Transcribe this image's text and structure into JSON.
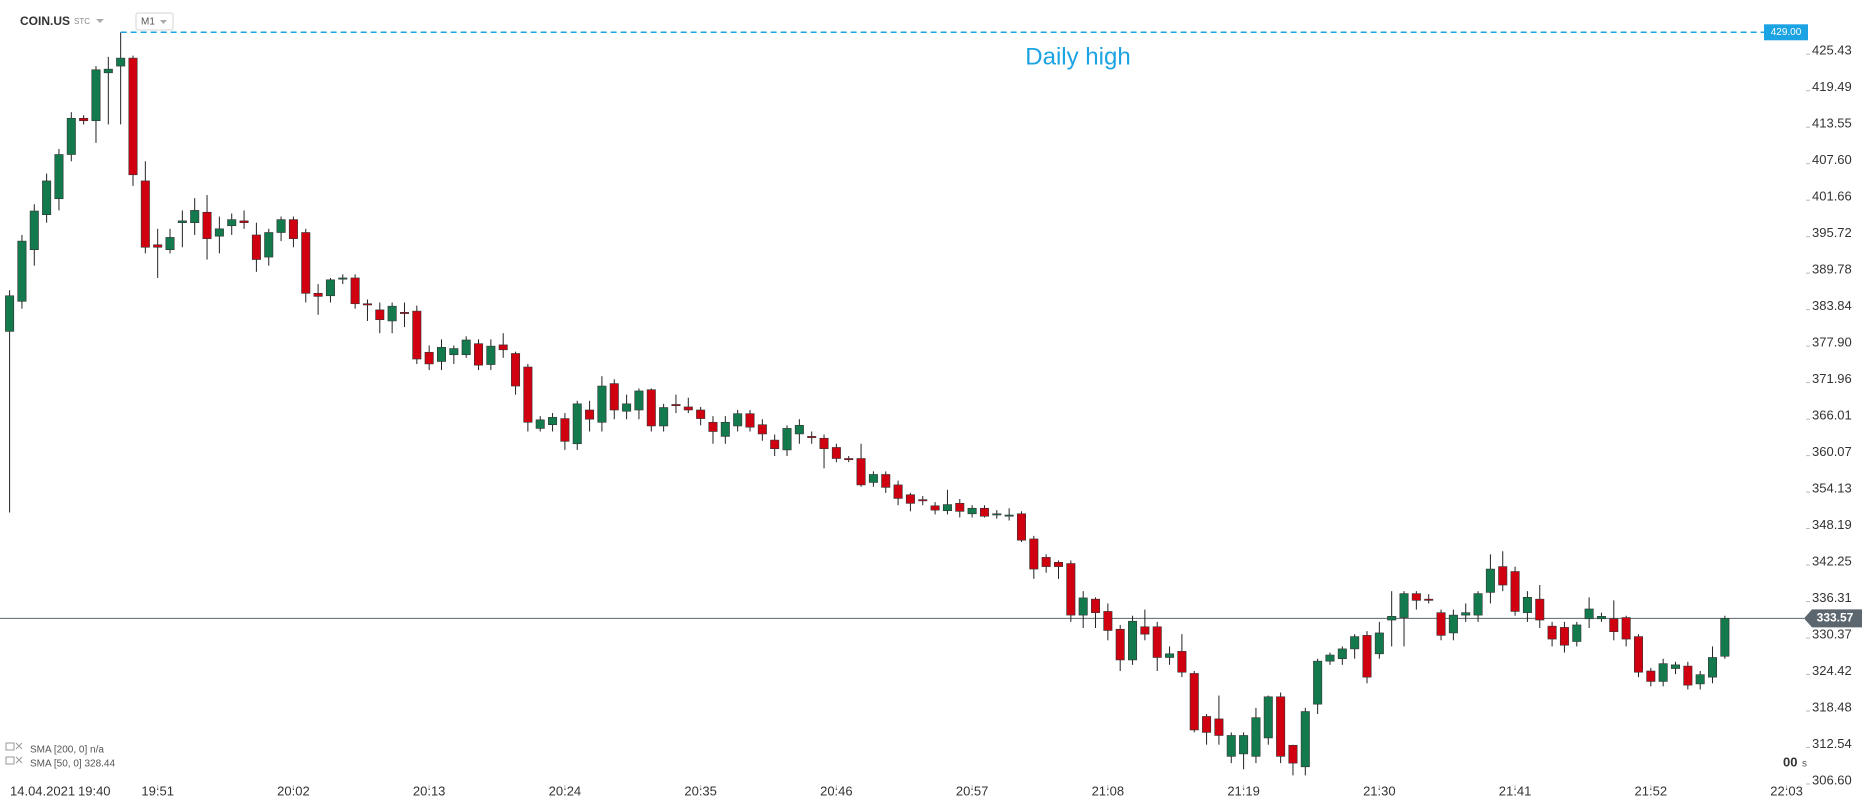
{
  "chart_data": {
    "type": "candlestick",
    "symbol": "COIN.US",
    "source": "STC",
    "timeframe": "M1",
    "start_date": "14.04.2021",
    "start_time": "19:40",
    "up_color": "#127a4d",
    "down_color": "#d00010",
    "wick_color": "#222222",
    "ylim": [
      306.6,
      434.26
    ],
    "yticks": [
      425.43,
      419.49,
      413.55,
      {
        "value": 407.6,
        "label": "407.60"
      },
      401.66,
      395.72,
      389.78,
      383.84,
      {
        "value": 377.9,
        "label": "377.90"
      },
      371.96,
      366.01,
      360.07,
      354.13,
      348.19,
      342.25,
      336.31,
      330.37,
      324.42,
      318.48,
      312.54,
      {
        "value": 306.6,
        "label": "306.60"
      }
    ],
    "daily_high": {
      "value": 429,
      "label": "429.00",
      "text": "Daily high",
      "color": "#1ba3e3"
    },
    "last_price": {
      "value": 333.57,
      "label": "333.57",
      "color": "#5c666e"
    },
    "indicators": [
      "SMA [200, 0] n/a",
      "SMA [50, 0] 328.44"
    ],
    "countdown": {
      "value": "00",
      "unit": "s",
      "color": "#f0a020"
    },
    "categories": [
      null,
      null,
      null,
      null,
      null,
      null,
      null,
      null,
      null,
      null,
      null,
      null,
      "19:51",
      null,
      null,
      null,
      null,
      null,
      null,
      null,
      null,
      null,
      null,
      "20:02",
      null,
      null,
      null,
      null,
      null,
      null,
      null,
      null,
      null,
      null,
      "20:13",
      null,
      null,
      null,
      null,
      null,
      null,
      null,
      null,
      null,
      null,
      "20:24",
      null,
      null,
      null,
      null,
      null,
      null,
      null,
      null,
      null,
      null,
      "20:35",
      null,
      null,
      null,
      null,
      null,
      null,
      null,
      null,
      null,
      null,
      "20:46",
      null,
      null,
      null,
      null,
      null,
      null,
      null,
      null,
      null,
      null,
      "20:57",
      null,
      null,
      null,
      null,
      null,
      null,
      null,
      null,
      null,
      null,
      "21:08",
      null,
      null,
      null,
      null,
      null,
      null,
      null,
      null,
      null,
      null,
      "21:19",
      null,
      null,
      null,
      null,
      null,
      null,
      null,
      null,
      null,
      null,
      "21:30",
      null,
      null,
      null,
      null,
      null,
      null,
      null,
      null,
      null,
      null,
      "21:41",
      null,
      null,
      null,
      null,
      null,
      null,
      null,
      null,
      null,
      null,
      "21:52",
      null,
      null,
      null,
      null,
      null,
      null,
      null,
      null,
      null,
      null,
      "22:03"
    ],
    "open": [
      380.3,
      385.2,
      393.6,
      399.3,
      401.9,
      409.1,
      415.0,
      414.6,
      422.4,
      423.5,
      424.8,
      404.8,
      394.4,
      393.6,
      398.0,
      398.0,
      399.7,
      395.8,
      397.5,
      398.3,
      396.0,
      392.4,
      396.4,
      398.5,
      396.4,
      386.5,
      386.1,
      388.8,
      389.0,
      384.8,
      383.8,
      382.0,
      383.4,
      383.6,
      376.9,
      375.4,
      376.5,
      376.5,
      378.3,
      374.9,
      378.1,
      376.7,
      374.5,
      364.5,
      365.1,
      366.1,
      362.0,
      367.5,
      365.5,
      371.8,
      367.3,
      367.5,
      370.8,
      364.9,
      368.4,
      368.0,
      367.5,
      365.5,
      363.2,
      364.9,
      366.9,
      365.1,
      362.6,
      361.0,
      363.6,
      363.2,
      362.9,
      361.4,
      359.6,
      359.6,
      355.7,
      357.0,
      355.3,
      353.7,
      352.9,
      351.9,
      351.1,
      352.3,
      350.6,
      351.5,
      350.6,
      350.4,
      350.6,
      346.5,
      343.5,
      342.7,
      342.5,
      334.1,
      336.7,
      334.7,
      331.8,
      326.8,
      332.2,
      332.2,
      327.2,
      328.2,
      324.6,
      317.6,
      317.2,
      311.1,
      311.5,
      311.1,
      314.1,
      320.8,
      312.9,
      309.4,
      319.6,
      326.6,
      327.0,
      328.6,
      330.8,
      327.8,
      333.3,
      333.7,
      337.6,
      336.7,
      334.5,
      331.2,
      334.1,
      334.1,
      337.8,
      342.0,
      341.2,
      334.5,
      336.7,
      332.3,
      332.1,
      329.8,
      333.5,
      333.5,
      333.5,
      333.7,
      330.6,
      325.0,
      323.3,
      325.4,
      325.8,
      322.9,
      324.0,
      327.4,
      null,
      null,
      null,
      null,
      null
    ],
    "high": [
      387.0,
      396.0,
      401.0,
      406.0,
      410.0,
      416.0,
      415.5,
      423.5,
      425.0,
      429.0,
      425.2,
      408.0,
      397.0,
      397.0,
      400.0,
      402.0,
      402.5,
      399.0,
      399.5,
      400.0,
      398.0,
      397.0,
      399.0,
      399.0,
      397.0,
      388.0,
      389.0,
      389.6,
      389.6,
      385.5,
      385.0,
      385.0,
      385.0,
      384.5,
      378.0,
      379.0,
      378.0,
      379.5,
      379.0,
      379.0,
      380.0,
      377.0,
      375.0,
      366.5,
      367.0,
      367.0,
      369.0,
      369.0,
      373.0,
      372.5,
      370.0,
      371.0,
      371.0,
      368.5,
      370.0,
      369.5,
      368.0,
      366.5,
      366.5,
      367.5,
      367.5,
      366.0,
      363.5,
      365.0,
      366.0,
      364.0,
      363.5,
      362.0,
      360.0,
      362.0,
      357.5,
      357.5,
      356.0,
      354.0,
      353.5,
      352.5,
      354.5,
      353.0,
      352.0,
      352.0,
      351.2,
      351.5,
      351.0,
      347.0,
      344.0,
      343.0,
      343.0,
      338.0,
      337.0,
      336.0,
      332.5,
      334.0,
      335.0,
      333.0,
      329.0,
      331.0,
      325.0,
      318.0,
      321.0,
      315.0,
      315.0,
      319.0,
      321.0,
      321.5,
      313.0,
      319.0,
      327.0,
      328.0,
      329.0,
      331.0,
      331.5,
      333.0,
      338.0,
      338.0,
      338.0,
      337.5,
      335.0,
      335.0,
      336.0,
      338.0,
      344.0,
      344.5,
      342.0,
      338.0,
      339.0,
      333.0,
      333.0,
      333.0,
      337.0,
      334.5,
      336.5,
      334.0,
      331.0,
      325.5,
      327.0,
      326.5,
      326.5,
      325.0,
      329.0,
      334.0,
      null,
      null,
      null,
      null,
      null
    ],
    "low": [
      350.8,
      384.0,
      391.0,
      398.0,
      400.0,
      408.0,
      414.0,
      411.0,
      414.0,
      414.0,
      404.0,
      393.0,
      389.0,
      393.0,
      394.0,
      396.0,
      392.0,
      393.0,
      396.0,
      397.0,
      390.0,
      391.0,
      395.0,
      394.0,
      385.0,
      383.0,
      385.0,
      388.0,
      384.0,
      382.0,
      380.0,
      380.0,
      381.0,
      375.0,
      374.0,
      374.0,
      375.0,
      376.0,
      374.0,
      374.0,
      376.0,
      370.0,
      364.0,
      364.0,
      364.0,
      361.0,
      361.0,
      364.0,
      364.0,
      366.0,
      366.0,
      366.0,
      364.0,
      364.0,
      367.0,
      367.0,
      365.0,
      362.0,
      362.0,
      364.0,
      364.0,
      362.5,
      360.0,
      360.0,
      362.0,
      362.0,
      358.0,
      359.0,
      359.0,
      355.0,
      355.0,
      354.0,
      352.0,
      351.0,
      352.0,
      350.5,
      350.5,
      350.0,
      350.0,
      350.0,
      349.8,
      349.5,
      346.0,
      340.0,
      341.0,
      340.0,
      333.0,
      332.0,
      332.0,
      330.0,
      325.0,
      326.0,
      330.0,
      325.0,
      326.0,
      324.0,
      315.0,
      313.0,
      313.0,
      310.0,
      309.0,
      310.0,
      313.0,
      310.0,
      308.0,
      308.0,
      318.0,
      326.0,
      326.0,
      327.0,
      323.0,
      327.0,
      329.0,
      329.0,
      335.0,
      336.0,
      330.0,
      330.0,
      333.0,
      333.0,
      336.0,
      338.0,
      334.0,
      333.0,
      332.0,
      329.0,
      328.0,
      329.0,
      332.0,
      333.0,
      330.0,
      329.0,
      324.0,
      322.5,
      322.5,
      324.5,
      322.0,
      322.0,
      323.0,
      327.0,
      null,
      null,
      null,
      null,
      null
    ],
    "close": [
      386.1,
      395.0,
      399.9,
      404.8,
      409.1,
      415.0,
      414.6,
      422.9,
      423.0,
      424.8,
      405.8,
      394.0,
      394.0,
      395.6,
      398.3,
      400.0,
      395.4,
      397.0,
      398.5,
      398.0,
      392.0,
      396.4,
      398.5,
      395.4,
      386.5,
      386.0,
      388.7,
      389.0,
      384.8,
      384.6,
      382.2,
      384.4,
      383.2,
      375.8,
      375.0,
      377.7,
      377.5,
      378.9,
      374.8,
      377.9,
      377.3,
      371.4,
      365.5,
      365.9,
      366.3,
      362.4,
      368.5,
      366.0,
      371.4,
      367.5,
      368.5,
      370.6,
      364.9,
      367.9,
      368.2,
      367.5,
      366.1,
      364.0,
      365.5,
      366.9,
      364.7,
      363.6,
      361.2,
      364.5,
      365.0,
      363.0,
      361.2,
      359.6,
      359.4,
      355.3,
      357.0,
      354.9,
      353.1,
      352.3,
      352.7,
      351.2,
      352.1,
      351.0,
      351.5,
      350.2,
      350.6,
      350.4,
      346.3,
      341.6,
      342.0,
      342.0,
      334.1,
      336.9,
      334.5,
      331.6,
      326.8,
      333.1,
      331.0,
      327.2,
      327.8,
      324.8,
      315.4,
      315.0,
      314.5,
      314.5,
      314.5,
      317.4,
      320.8,
      311.1,
      310.0,
      318.4,
      326.6,
      327.6,
      328.6,
      330.6,
      324.0,
      331.2,
      333.9,
      337.6,
      336.5,
      336.5,
      330.8,
      334.1,
      334.5,
      337.6,
      341.6,
      339.0,
      334.7,
      337.0,
      333.3,
      330.2,
      329.2,
      332.5,
      335.1,
      333.9,
      331.4,
      330.2,
      324.8,
      323.3,
      326.2,
      326.0,
      322.7,
      324.4,
      327.2,
      333.57,
      null,
      null,
      null,
      null,
      null
    ]
  }
}
